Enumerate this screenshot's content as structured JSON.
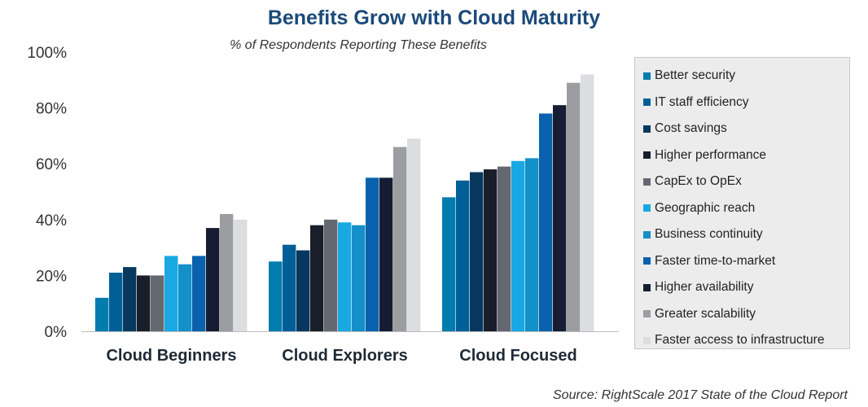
{
  "chart_data": {
    "type": "bar",
    "title": "Benefits Grow with Cloud Maturity",
    "subtitle": "% of Respondents Reporting These Benefits",
    "categories": [
      "Cloud Beginners",
      "Cloud Explorers",
      "Cloud Focused"
    ],
    "yticks": [
      "0%",
      "20%",
      "40%",
      "60%",
      "80%",
      "100%"
    ],
    "ylim": [
      0,
      100
    ],
    "grid": false,
    "legend_position": "right",
    "series": [
      {
        "name": "Better security",
        "color": "#007cad",
        "values": [
          12,
          25,
          48
        ]
      },
      {
        "name": "IT staff efficiency",
        "color": "#005f97",
        "values": [
          21,
          31,
          54
        ]
      },
      {
        "name": "Cost savings",
        "color": "#08385e",
        "values": [
          23,
          29,
          57
        ]
      },
      {
        "name": "Higher performance",
        "color": "#1a1d2a",
        "values": [
          20,
          38,
          58
        ]
      },
      {
        "name": "CapEx to OpEx",
        "color": "#646870",
        "values": [
          20,
          40,
          59
        ]
      },
      {
        "name": "Geographic reach",
        "color": "#1aa8e2",
        "values": [
          27,
          39,
          61
        ]
      },
      {
        "name": "Business continuity",
        "color": "#138fc9",
        "values": [
          24,
          38,
          62
        ]
      },
      {
        "name": "Faster time-to-market",
        "color": "#0a61ad",
        "values": [
          27,
          55,
          78
        ]
      },
      {
        "name": "Higher availability",
        "color": "#161d33",
        "values": [
          37,
          55,
          81
        ]
      },
      {
        "name": "Greater scalability",
        "color": "#9c9da1",
        "values": [
          42,
          66,
          89
        ]
      },
      {
        "name": "Faster access to infrastructure",
        "color": "#dcdde0",
        "values": [
          40,
          69,
          92
        ]
      }
    ]
  },
  "source": "Source: RightScale 2017 State of the Cloud Report"
}
